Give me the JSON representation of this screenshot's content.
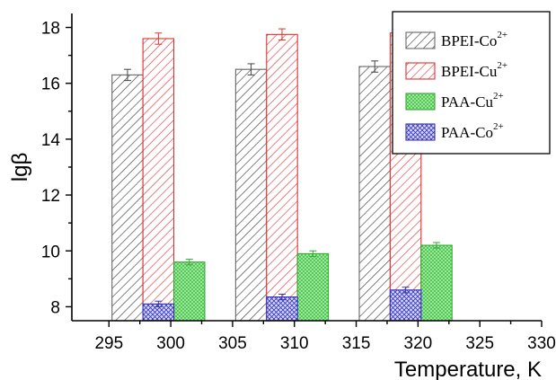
{
  "chart_data": {
    "type": "bar",
    "xlabel": "Temperature, K",
    "ylabel": "lgβ",
    "xlim": [
      292,
      330
    ],
    "ylim": [
      7.5,
      18.5
    ],
    "x_ticks": [
      295,
      300,
      305,
      310,
      315,
      320,
      325,
      330
    ],
    "y_ticks": [
      8,
      10,
      12,
      14,
      16,
      18
    ],
    "legend_position": "top-right",
    "series": [
      {
        "name": "BPEI-Co",
        "sup": "2+",
        "x": [
          296.5,
          306.5,
          316.5
        ],
        "values": [
          16.3,
          16.5,
          16.6
        ],
        "errors": [
          0.2,
          0.2,
          0.2
        ],
        "color": "#666666",
        "pattern": "diag-black"
      },
      {
        "name": "BPEI-Cu",
        "sup": "2+",
        "x": [
          299,
          309,
          319
        ],
        "values": [
          17.6,
          17.75,
          17.8
        ],
        "errors": [
          0.2,
          0.2,
          0.2
        ],
        "color": "#e03030",
        "pattern": "diag-red"
      },
      {
        "name": "PAA-Cu",
        "sup": "2+",
        "x": [
          301.5,
          311.5,
          321.5
        ],
        "values": [
          9.6,
          9.9,
          10.2
        ],
        "errors": [
          0.1,
          0.1,
          0.1
        ],
        "color": "#33aa33",
        "pattern": "cross-green"
      },
      {
        "name": "PAA-Co",
        "sup": "2+",
        "x": [
          299,
          309,
          319
        ],
        "values": [
          8.1,
          8.35,
          8.6
        ],
        "errors": [
          0.1,
          0.1,
          0.1
        ],
        "color": "#3333bb",
        "pattern": "cross-blue"
      }
    ]
  }
}
